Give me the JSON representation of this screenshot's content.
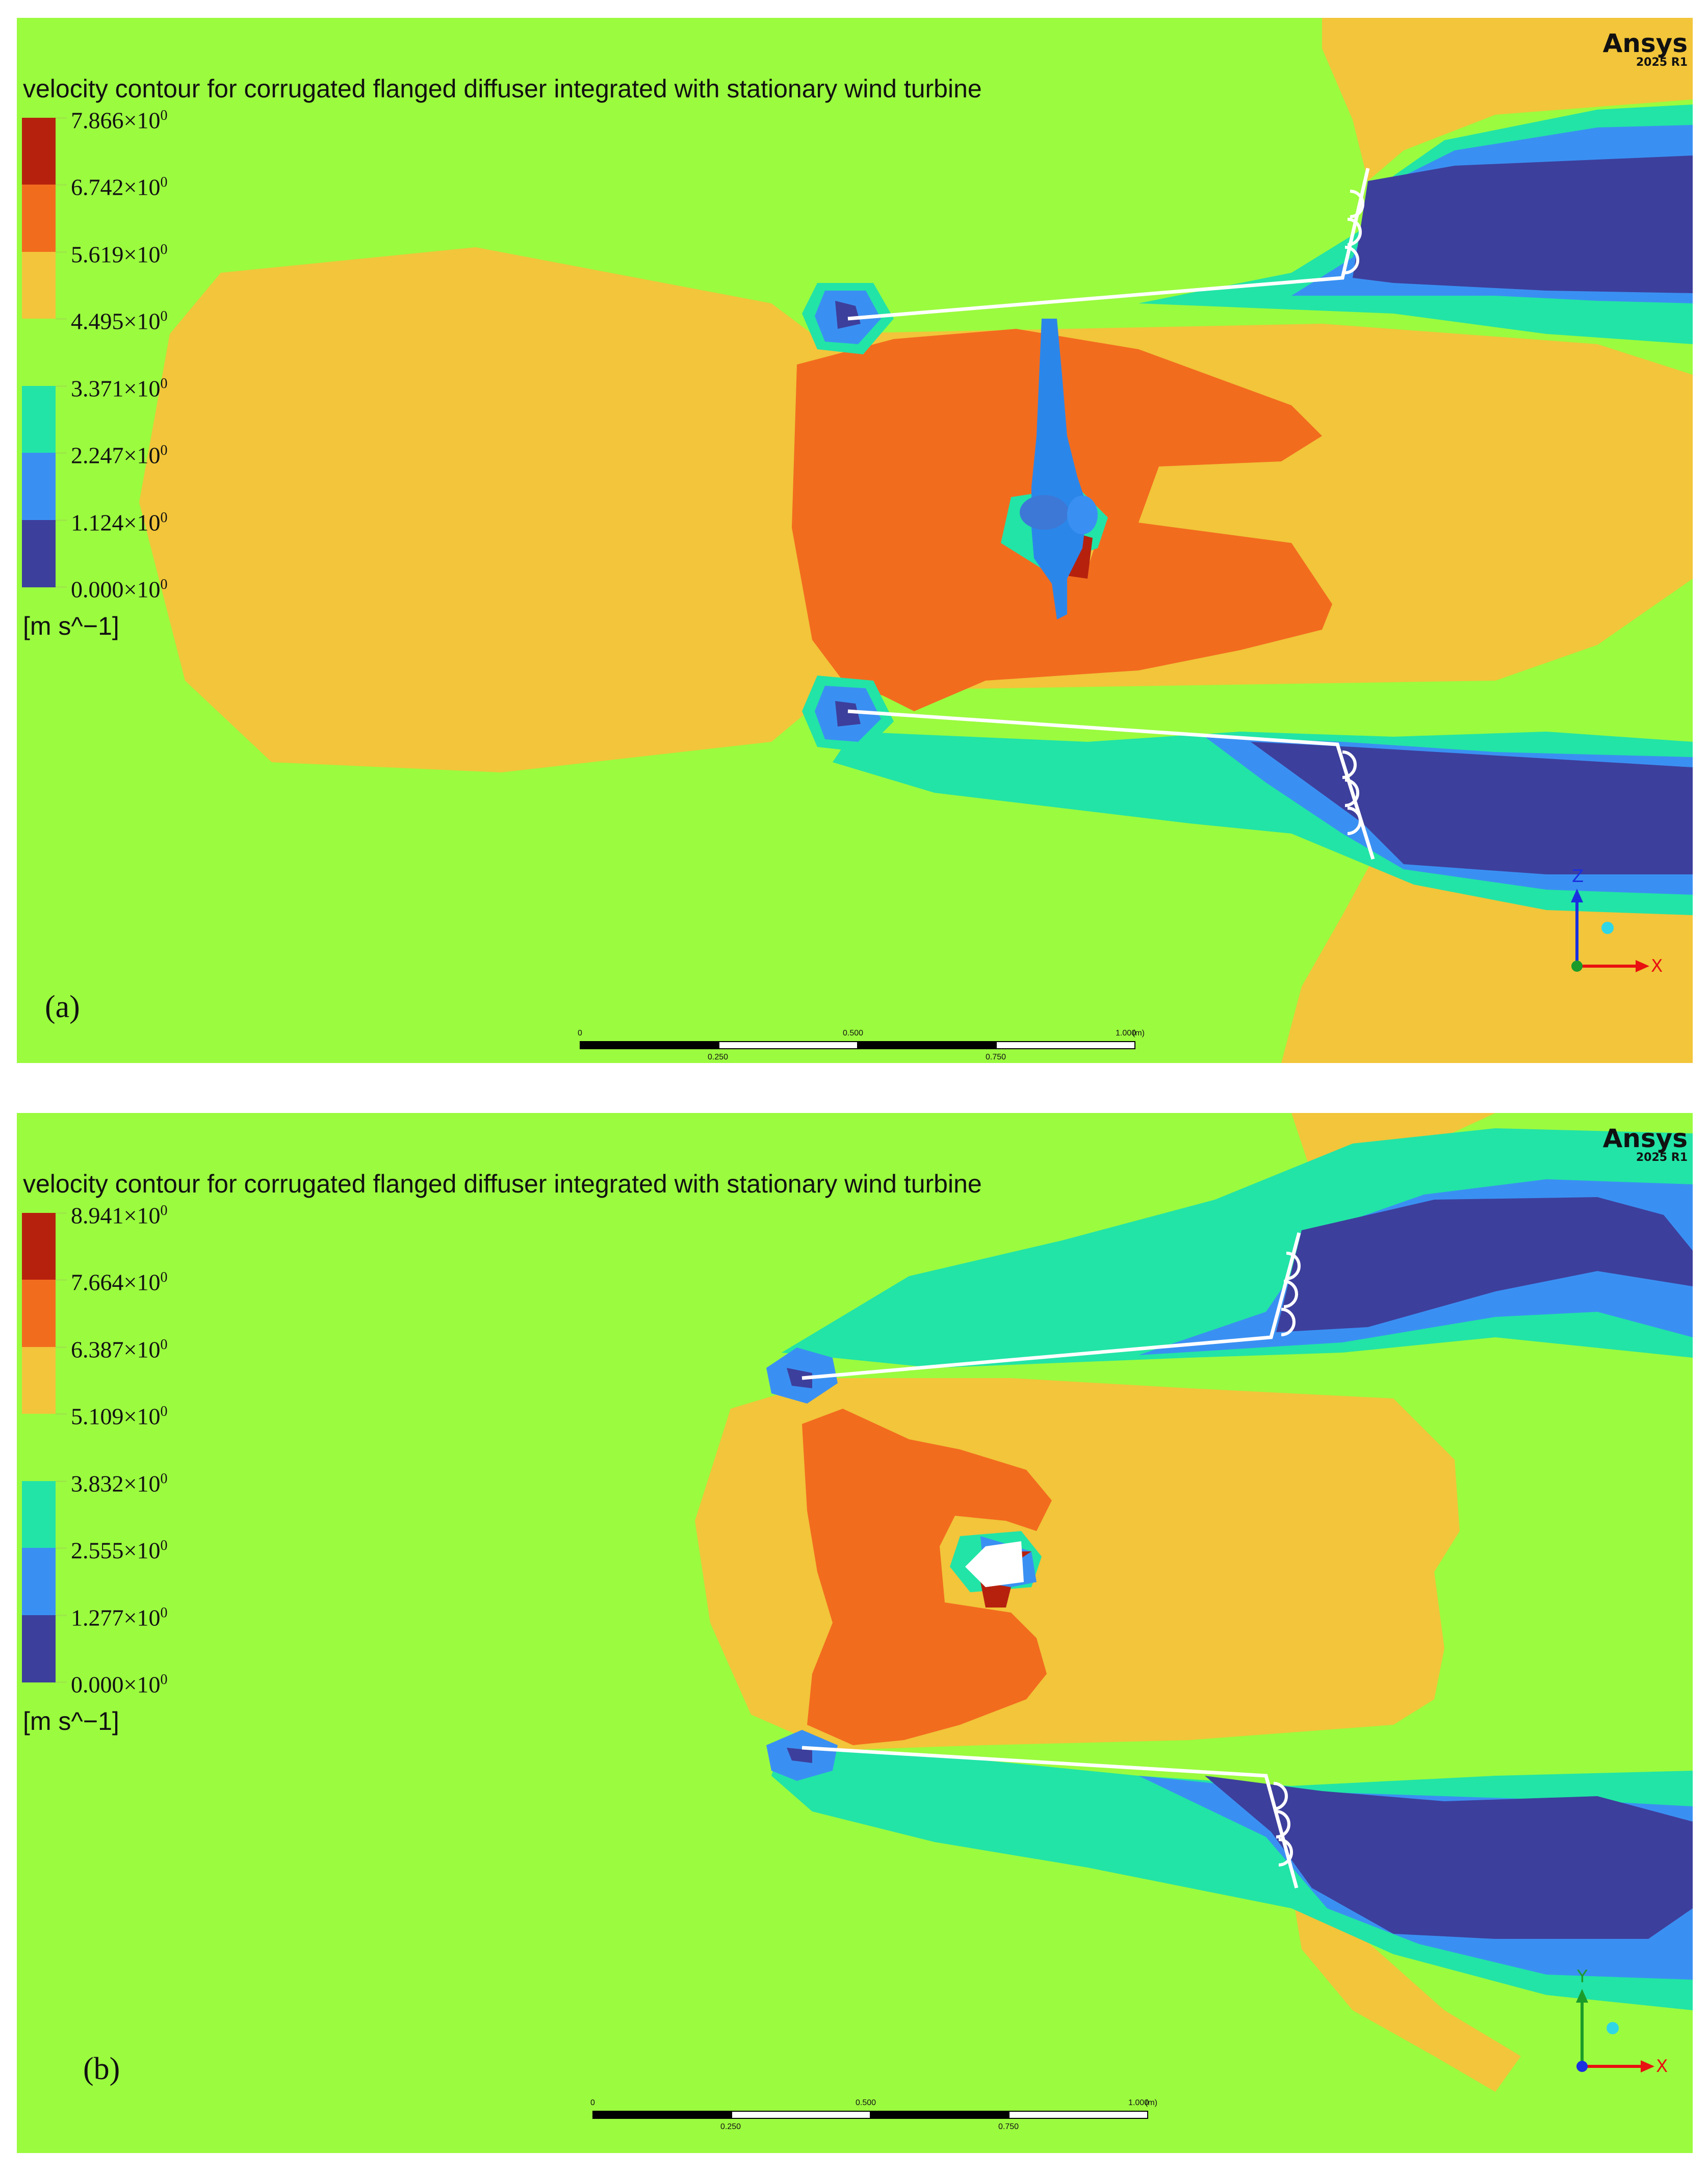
{
  "software": {
    "name": "Ansys",
    "version": "2025 R1"
  },
  "colors": {
    "band_0": "#3d3f9c",
    "band_1": "#3a90f2",
    "band_2": "#22e4a6",
    "band_3": "#9bfb3f",
    "band_4": "#f2c53a",
    "band_5": "#f26c1e",
    "band_6": "#b6210e",
    "geometry": "#ffffff",
    "rotor": "#2b86ea"
  },
  "panels": [
    {
      "id": "a",
      "label": "(a)",
      "title": "velocity contour for corrugated flanged diffuser integrated with stationary wind turbine",
      "legend": {
        "levels": [
          "7.866×10",
          "6.742×10",
          "5.619×10",
          "4.495×10",
          "3.371×10",
          "2.247×10",
          "1.124×10",
          "0.000×10"
        ],
        "exponent": "0",
        "unit": "[m s^−1]"
      },
      "scale_bar": {
        "labels": [
          "0",
          "0.500",
          "1.000",
          "(m)",
          "0.250",
          "0.750"
        ]
      },
      "axes": {
        "up": "Z",
        "right": "X"
      }
    },
    {
      "id": "b",
      "label": "(b)",
      "title": "velocity contour for corrugated flanged diffuser integrated with stationary wind turbine",
      "legend": {
        "levels": [
          "8.941×10",
          "7.664×10",
          "6.387×10",
          "5.109×10",
          "3.832×10",
          "2.555×10",
          "1.277×10",
          "0.000×10"
        ],
        "exponent": "0",
        "unit": "[m s^−1]"
      },
      "scale_bar": {
        "labels": [
          "0",
          "0.500",
          "1.000",
          "(m)",
          "0.250",
          "0.750"
        ]
      },
      "axes": {
        "up": "Y",
        "right": "X"
      }
    }
  ]
}
